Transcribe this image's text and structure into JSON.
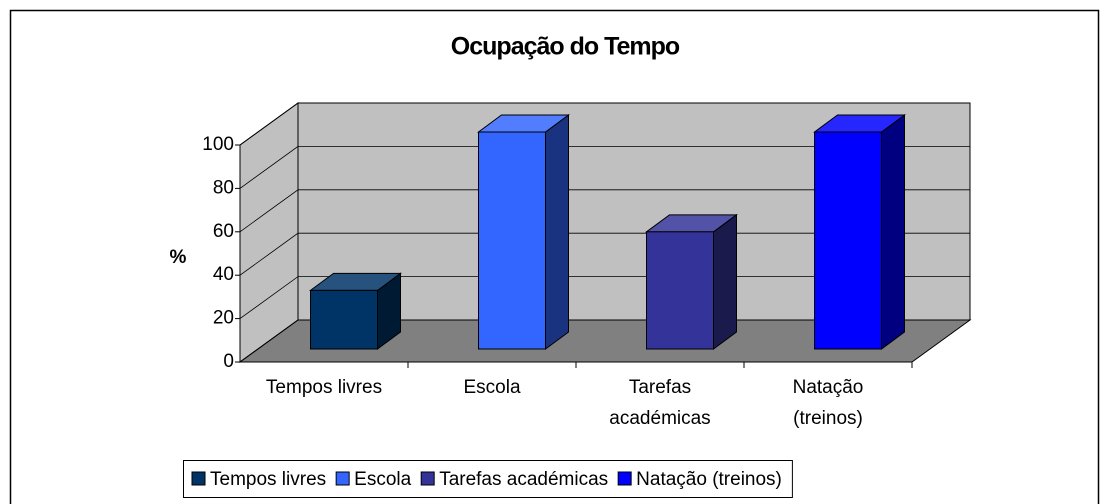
{
  "chart_data": {
    "type": "bar3d",
    "title": "Ocupação do Tempo",
    "y_label": "%",
    "categories": [
      "Tempos livres",
      "Escola",
      "Tarefas académicas",
      "Natação (treinos)"
    ],
    "values": [
      27,
      100,
      54,
      100
    ],
    "colors": [
      "#003366",
      "#3366ff",
      "#333399",
      "#0000ff"
    ],
    "ylim": [
      0,
      100
    ],
    "yticks": [
      0,
      20,
      40,
      60,
      80,
      100
    ],
    "grid": true,
    "legend": "bottom"
  }
}
